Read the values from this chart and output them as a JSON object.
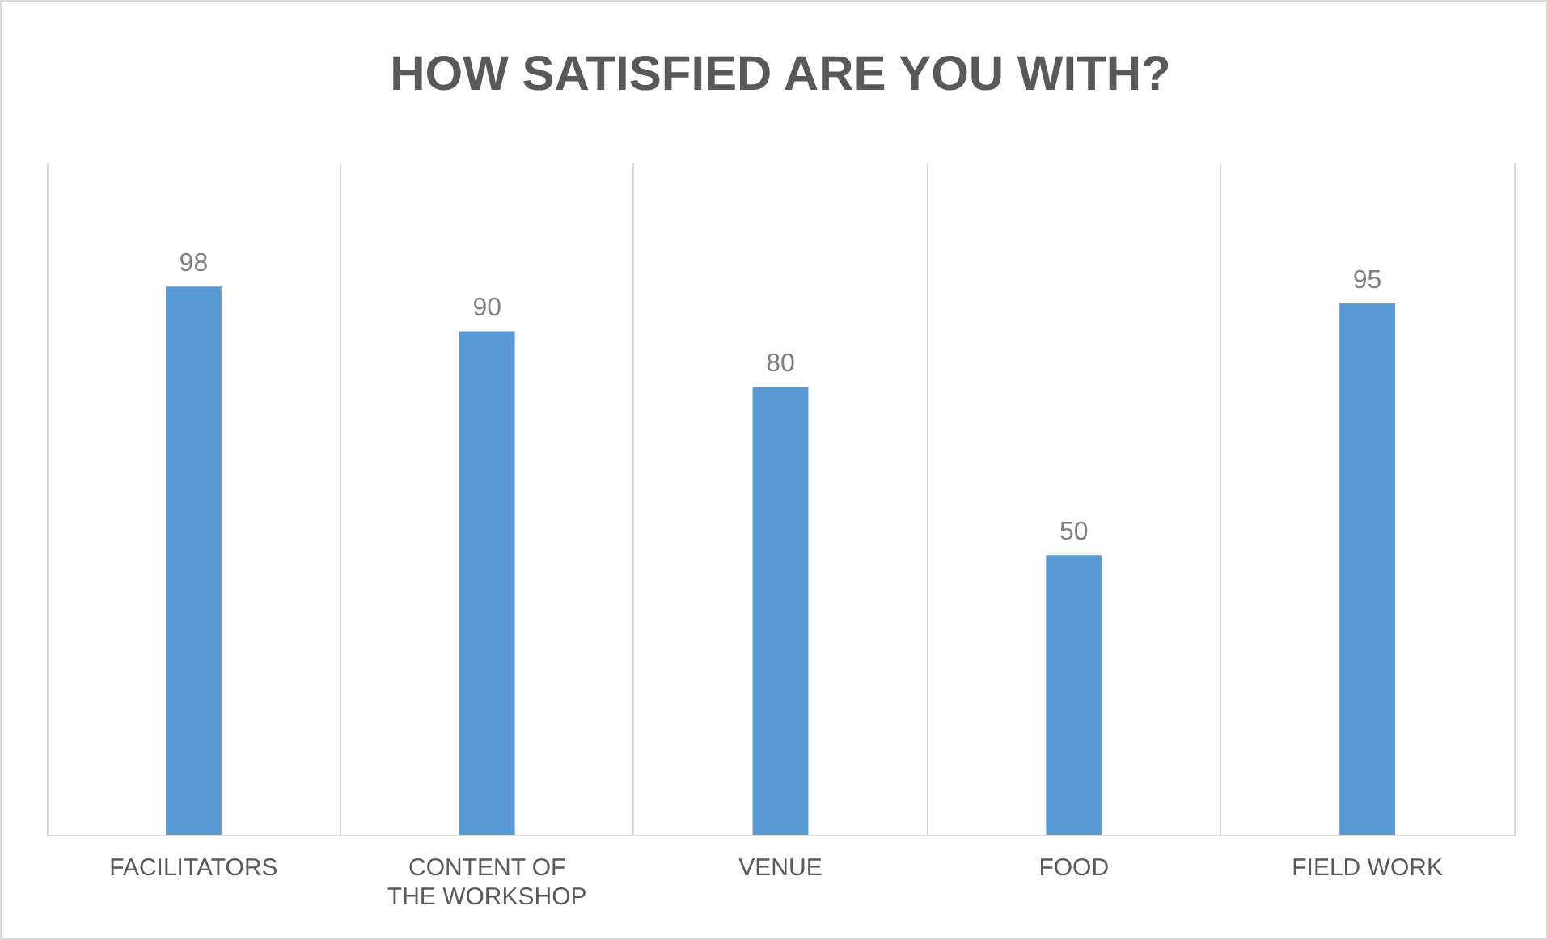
{
  "chart_data": {
    "type": "bar",
    "title": "HOW SATISFIED ARE YOU WITH?",
    "categories": [
      "FACILITATORS",
      "CONTENT OF THE WORKSHOP",
      "VENUE",
      "FOOD",
      "FIELD WORK"
    ],
    "values": [
      98,
      90,
      80,
      50,
      95
    ],
    "color": "#5b9bd5",
    "ylim": [
      0,
      120
    ],
    "grid": "x",
    "data_labels": true,
    "tick_labels": "x"
  }
}
